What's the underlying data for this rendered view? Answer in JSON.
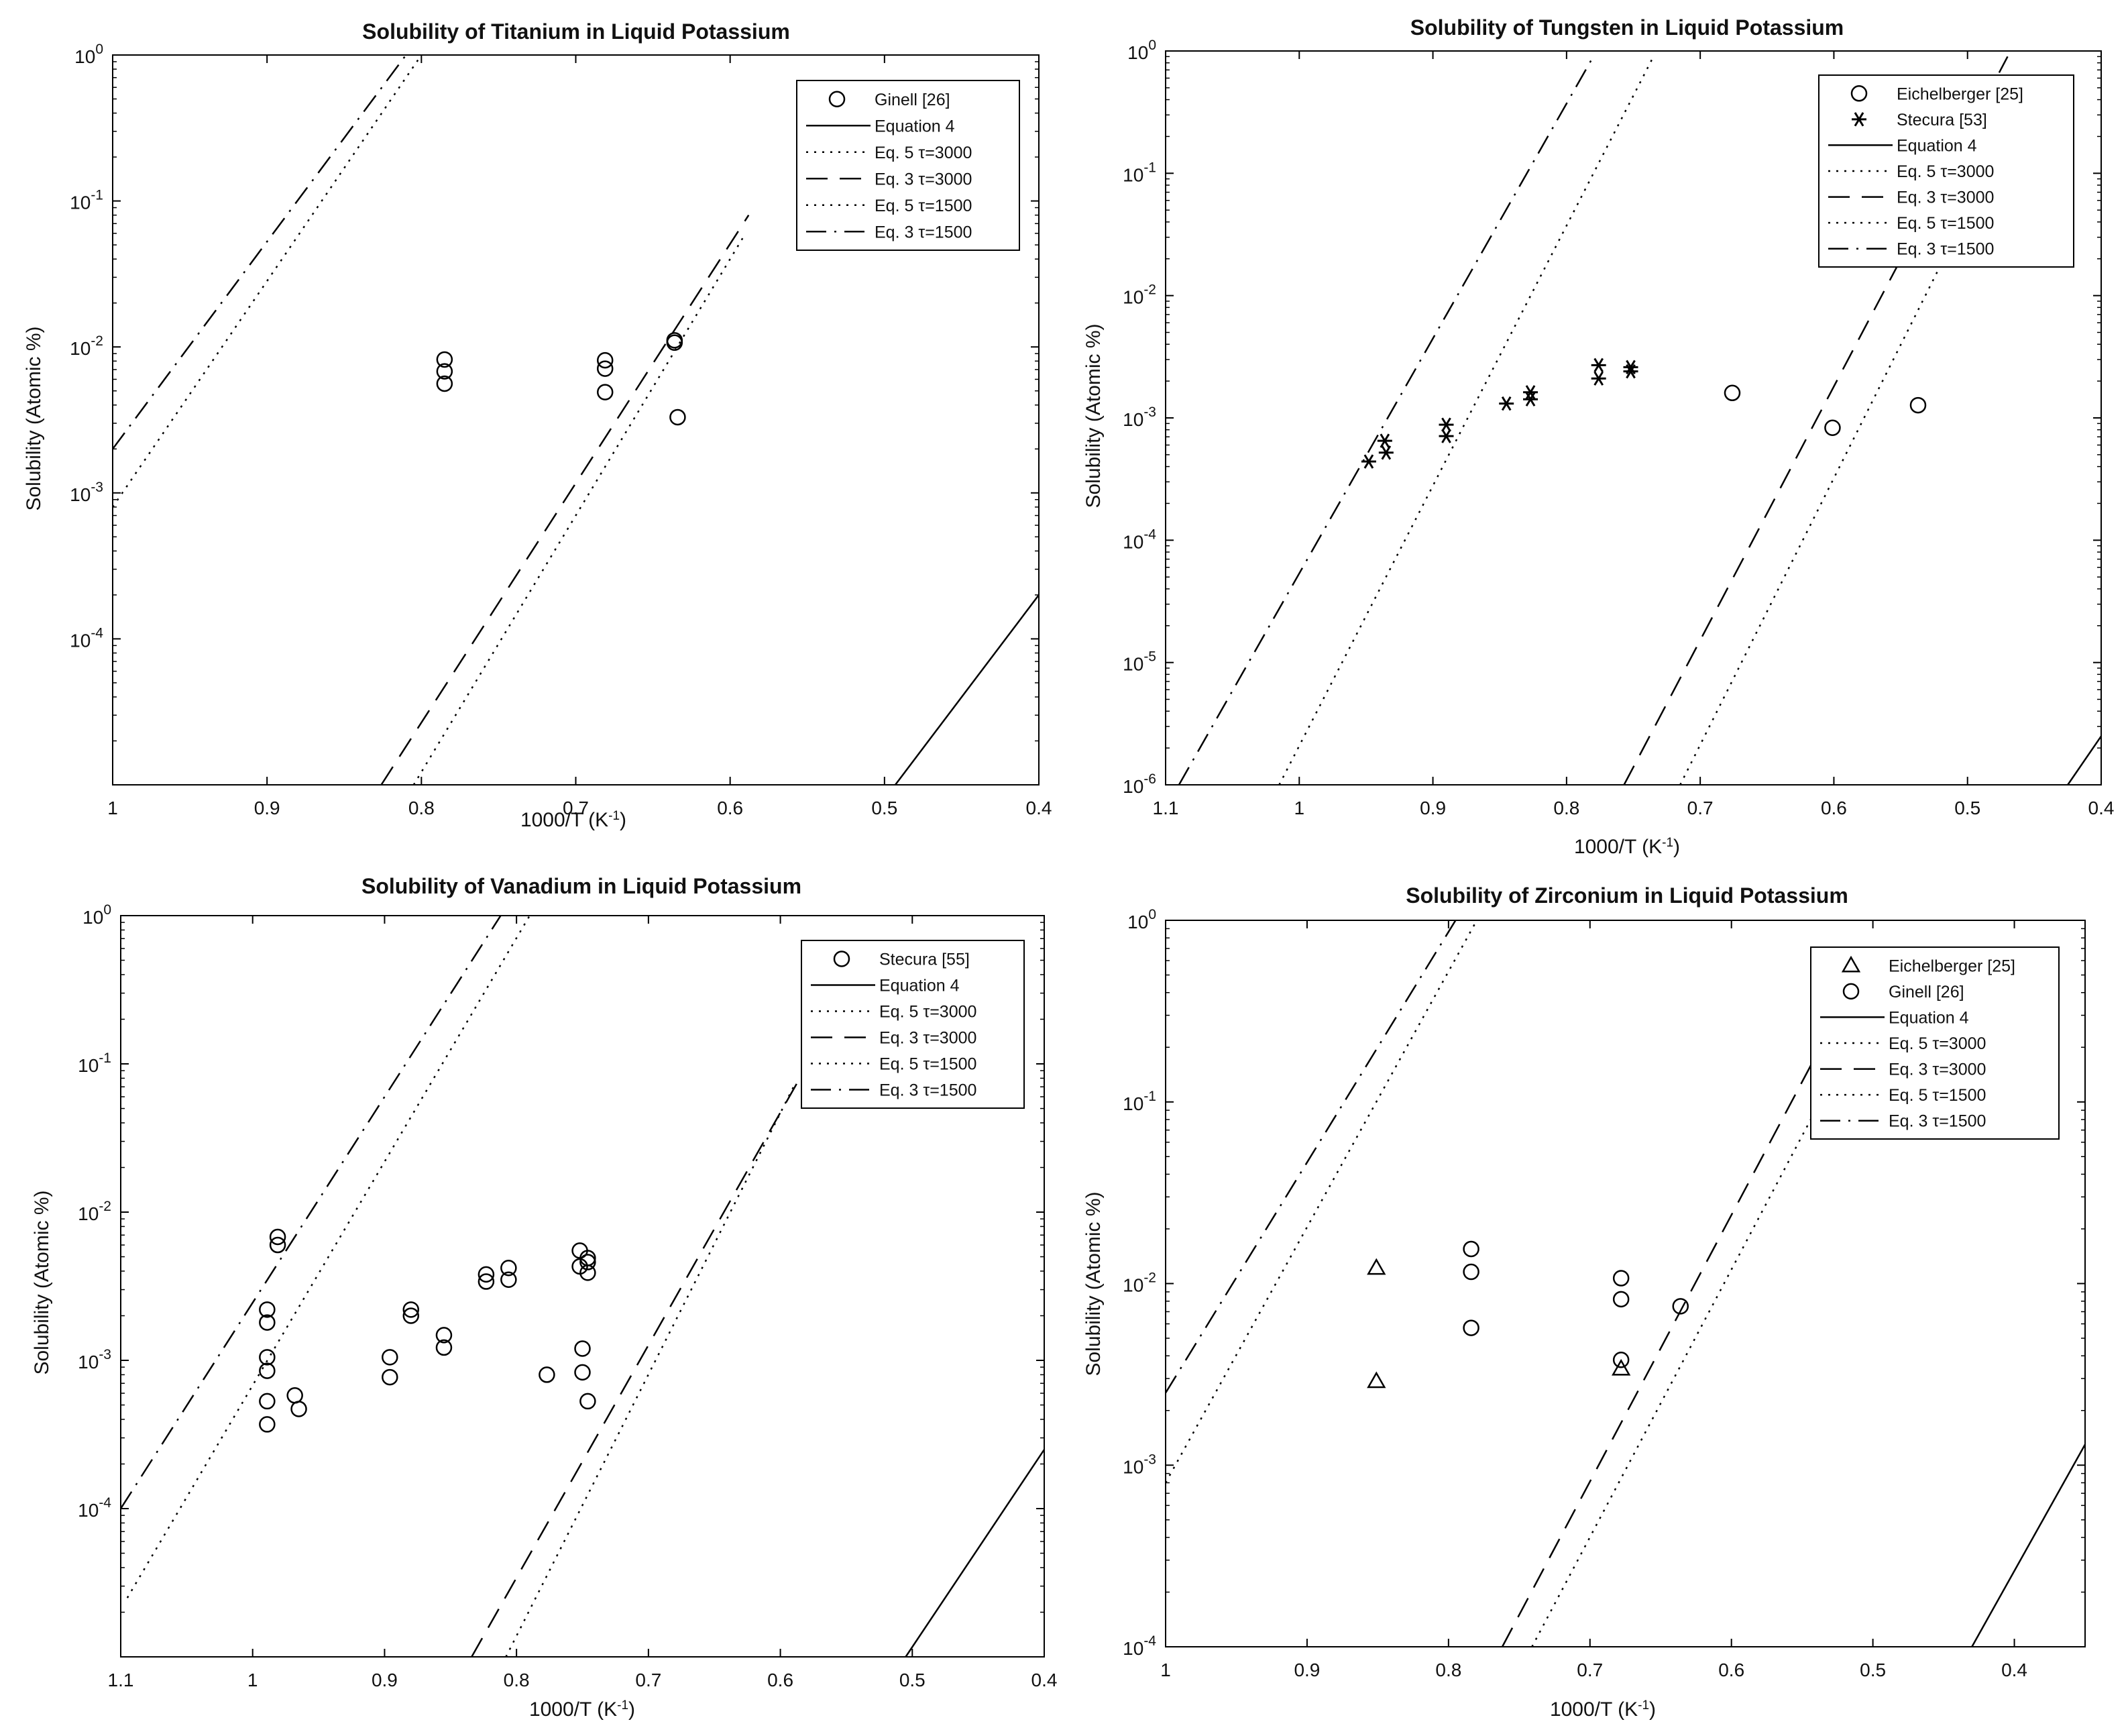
{
  "chart_data": [
    {
      "type": "scatter",
      "title": "Solubility of Titanium in Liquid Potassium",
      "xlabel": "1000/T (K",
      "xlabel_sup": "-1",
      "xlabel_end": ")",
      "ylabel": "Solubility (Atomic %)",
      "xlim": [
        1.0,
        0.4
      ],
      "ylim_log10": [
        -5,
        0
      ],
      "xticks": [
        1,
        0.9,
        0.8,
        0.7,
        0.6,
        0.5,
        0.4
      ],
      "xtick_labels": [
        "1",
        "0.9",
        "0.8",
        "0.7",
        "0.6",
        "0.5",
        "0.4"
      ],
      "ytick_exps": [
        -4,
        -3,
        -2,
        -1,
        0
      ],
      "ytick_labels": [
        {
          "base": "10",
          "exp": "-4"
        },
        {
          "base": "10",
          "exp": "-3"
        },
        {
          "base": "10",
          "exp": "-2"
        },
        {
          "base": "10",
          "exp": "-1"
        },
        {
          "base": "10",
          "exp": "0"
        }
      ],
      "legend_position": "top-right",
      "legend": [
        {
          "label": "Ginell [26]",
          "kind": "marker",
          "marker": "circle"
        },
        {
          "label": "Equation 4",
          "kind": "line",
          "style": "solid"
        },
        {
          "label": "Eq. 5 τ=3000",
          "kind": "line",
          "style": "dotted"
        },
        {
          "label": "Eq. 3 τ=3000",
          "kind": "line",
          "style": "dashed"
        },
        {
          "label": "Eq. 5 τ=1500",
          "kind": "line",
          "style": "dotted"
        },
        {
          "label": "Eq. 3 τ=1500",
          "kind": "line",
          "style": "dashdot"
        }
      ],
      "points": [
        {
          "series": "Ginell [26]",
          "marker": "circle",
          "x": [
            0.785,
            0.785,
            0.785,
            0.681,
            0.681,
            0.681,
            0.636,
            0.636,
            0.634
          ],
          "y": [
            0.0082,
            0.0068,
            0.0056,
            0.0081,
            0.0071,
            0.0049,
            0.0111,
            0.0107,
            0.0033
          ]
        }
      ],
      "lines": [
        {
          "name": "Equation 4",
          "style": "solid",
          "x": [
            0.493,
            0.4
          ],
          "y": [
            1e-05,
            0.0002
          ]
        },
        {
          "name": "Eq. 5 τ=3000",
          "style": "dotted",
          "x": [
            0.805,
            0.59
          ],
          "y": [
            1e-05,
            0.06
          ]
        },
        {
          "name": "Eq. 3 τ=3000",
          "style": "dashed",
          "x": [
            0.826,
            0.588
          ],
          "y": [
            1e-05,
            0.08
          ]
        },
        {
          "name": "Eq. 5 τ=1500",
          "style": "dotted",
          "x": [
            1.0,
            0.8
          ],
          "y": [
            0.0008,
            1.0
          ]
        },
        {
          "name": "Eq. 3 τ=1500",
          "style": "dashdot",
          "x": [
            1.0,
            0.81
          ],
          "y": [
            0.002,
            1.0
          ]
        }
      ]
    },
    {
      "type": "scatter",
      "title": "Solubility of Tungsten in Liquid Potassium",
      "xlabel": "1000/T (K",
      "xlabel_sup": "-1",
      "xlabel_end": ")",
      "ylabel": "Solubility (Atomic %)",
      "xlim": [
        1.1,
        0.4
      ],
      "ylim_log10": [
        -6,
        0
      ],
      "xticks": [
        1.1,
        1,
        0.9,
        0.8,
        0.7,
        0.6,
        0.5,
        0.4
      ],
      "xtick_labels": [
        "1.1",
        "1",
        "0.9",
        "0.8",
        "0.7",
        "0.6",
        "0.5",
        "0.4"
      ],
      "ytick_exps": [
        -6,
        -5,
        -4,
        -3,
        -2,
        -1,
        0
      ],
      "ytick_labels": [
        {
          "base": "10",
          "exp": "-6"
        },
        {
          "base": "10",
          "exp": "-5"
        },
        {
          "base": "10",
          "exp": "-4"
        },
        {
          "base": "10",
          "exp": "-3"
        },
        {
          "base": "10",
          "exp": "-2"
        },
        {
          "base": "10",
          "exp": "-1"
        },
        {
          "base": "10",
          "exp": "0"
        }
      ],
      "legend_position": "top-right",
      "legend": [
        {
          "label": "Eichelberger [25]",
          "kind": "marker",
          "marker": "circle"
        },
        {
          "label": "Stecura [53]",
          "kind": "marker",
          "marker": "asterisk"
        },
        {
          "label": "Equation 4",
          "kind": "line",
          "style": "solid"
        },
        {
          "label": "Eq. 5 τ=3000",
          "kind": "line",
          "style": "dotted"
        },
        {
          "label": "Eq. 3 τ=3000",
          "kind": "line",
          "style": "dashed"
        },
        {
          "label": "Eq. 5 τ=1500",
          "kind": "line",
          "style": "dotted"
        },
        {
          "label": "Eq. 3 τ=1500",
          "kind": "line",
          "style": "dashdot"
        }
      ],
      "points": [
        {
          "series": "Eichelberger [25]",
          "marker": "circle",
          "x": [
            0.676,
            0.601,
            0.537
          ],
          "y": [
            0.0016,
            0.00083,
            0.00127
          ]
        },
        {
          "series": "Stecura [53]",
          "marker": "asterisk",
          "x": [
            0.948,
            0.936,
            0.935,
            0.89,
            0.89,
            0.845,
            0.827,
            0.827,
            0.776,
            0.776,
            0.752,
            0.752
          ],
          "y": [
            0.00044,
            0.00065,
            0.00052,
            0.00088,
            0.00071,
            0.00131,
            0.00162,
            0.00142,
            0.0027,
            0.0021,
            0.0026,
            0.0024
          ]
        }
      ],
      "lines": [
        {
          "name": "Equation 4",
          "style": "solid",
          "x": [
            0.425,
            0.4
          ],
          "y": [
            1e-06,
            2.5e-06
          ]
        },
        {
          "name": "Eq. 5 τ=3000",
          "style": "dotted",
          "x": [
            0.715,
            0.45
          ],
          "y": [
            1e-06,
            0.6
          ]
        },
        {
          "name": "Eq. 3 τ=3000",
          "style": "dashed",
          "x": [
            0.757,
            0.47
          ],
          "y": [
            1e-06,
            0.9
          ]
        },
        {
          "name": "Eq. 5 τ=1500",
          "style": "dotted",
          "x": [
            1.015,
            0.735
          ],
          "y": [
            1e-06,
            0.9
          ]
        },
        {
          "name": "Eq. 3 τ=1500",
          "style": "dashdot",
          "x": [
            1.09,
            0.78
          ],
          "y": [
            1e-06,
            0.9
          ]
        }
      ]
    },
    {
      "type": "scatter",
      "title": "Solubility of Vanadium in Liquid Potassium",
      "xlabel": "1000/T (K",
      "xlabel_sup": "-1",
      "xlabel_end": ")",
      "ylabel": "Solubility (Atomic %)",
      "xlim": [
        1.1,
        0.4
      ],
      "ylim_log10": [
        -5,
        0
      ],
      "xticks": [
        1.1,
        1,
        0.9,
        0.8,
        0.7,
        0.6,
        0.5,
        0.4
      ],
      "xtick_labels": [
        "1.1",
        "1",
        "0.9",
        "0.8",
        "0.7",
        "0.6",
        "0.5",
        "0.4"
      ],
      "ytick_exps": [
        -4,
        -3,
        -2,
        -1,
        0
      ],
      "ytick_labels": [
        {
          "base": "10",
          "exp": "-4"
        },
        {
          "base": "10",
          "exp": "-3"
        },
        {
          "base": "10",
          "exp": "-2"
        },
        {
          "base": "10",
          "exp": "-1"
        },
        {
          "base": "10",
          "exp": "0"
        }
      ],
      "legend_position": "top-right",
      "legend": [
        {
          "label": "Stecura [55]",
          "kind": "marker",
          "marker": "circle"
        },
        {
          "label": "Equation 4",
          "kind": "line",
          "style": "solid"
        },
        {
          "label": "Eq. 5 τ=3000",
          "kind": "line",
          "style": "dotted"
        },
        {
          "label": "Eq. 3 τ=3000",
          "kind": "line",
          "style": "dashed"
        },
        {
          "label": "Eq. 5 τ=1500",
          "kind": "line",
          "style": "dotted"
        },
        {
          "label": "Eq. 3 τ=1500",
          "kind": "line",
          "style": "dashdot"
        }
      ],
      "points": [
        {
          "series": "Stecura [55]",
          "marker": "circle",
          "x": [
            0.981,
            0.981,
            0.989,
            0.989,
            0.989,
            0.989,
            0.989,
            0.989,
            0.968,
            0.965,
            0.896,
            0.896,
            0.88,
            0.88,
            0.855,
            0.855,
            0.823,
            0.823,
            0.806,
            0.806,
            0.777,
            0.752,
            0.752,
            0.746,
            0.746,
            0.746,
            0.75,
            0.75,
            0.746
          ],
          "y": [
            0.0068,
            0.006,
            0.0022,
            0.0018,
            0.00105,
            0.00085,
            0.00053,
            0.00037,
            0.00058,
            0.00047,
            0.00105,
            0.00077,
            0.0022,
            0.002,
            0.00148,
            0.00122,
            0.0038,
            0.0034,
            0.0042,
            0.0035,
            0.0008,
            0.0055,
            0.0043,
            0.0049,
            0.0046,
            0.0039,
            0.0012,
            0.00083,
            0.00053
          ]
        }
      ],
      "lines": [
        {
          "name": "Equation 4",
          "style": "solid",
          "x": [
            0.505,
            0.4
          ],
          "y": [
            1e-05,
            0.00025
          ]
        },
        {
          "name": "Eq. 5 τ=3000",
          "style": "dotted",
          "x": [
            0.808,
            0.59
          ],
          "y": [
            1e-05,
            0.07
          ]
        },
        {
          "name": "Eq. 3 τ=3000",
          "style": "dashed",
          "x": [
            0.834,
            0.582
          ],
          "y": [
            1e-05,
            0.09
          ]
        },
        {
          "name": "Eq. 5 τ=1500",
          "style": "dotted",
          "x": [
            1.095,
            0.79
          ],
          "y": [
            2.5e-05,
            1.0
          ]
        },
        {
          "name": "Eq. 3 τ=1500",
          "style": "dashdot",
          "x": [
            1.1,
            0.812
          ],
          "y": [
            0.0001,
            1.0
          ]
        }
      ]
    },
    {
      "type": "scatter",
      "title": "Solubility of Zirconium in Liquid Potassium",
      "xlabel": "1000/T (K",
      "xlabel_sup": "-1",
      "xlabel_end": ")",
      "ylabel": "Solubility (Atomic %)",
      "xlim": [
        1.0,
        0.35
      ],
      "ylim_log10": [
        -4,
        0
      ],
      "xticks": [
        1,
        0.9,
        0.8,
        0.7,
        0.6,
        0.5,
        0.4
      ],
      "xtick_labels": [
        "1",
        "0.9",
        "0.8",
        "0.7",
        "0.6",
        "0.5",
        "0.4"
      ],
      "ytick_exps": [
        -4,
        -3,
        -2,
        -1,
        0
      ],
      "ytick_labels": [
        {
          "base": "10",
          "exp": "-4"
        },
        {
          "base": "10",
          "exp": "-3"
        },
        {
          "base": "10",
          "exp": "-2"
        },
        {
          "base": "10",
          "exp": "-1"
        },
        {
          "base": "10",
          "exp": "0"
        }
      ],
      "legend_position": "top-right",
      "legend": [
        {
          "label": "Eichelberger [25]",
          "kind": "marker",
          "marker": "triangle"
        },
        {
          "label": "Ginell [26]",
          "kind": "marker",
          "marker": "circle"
        },
        {
          "label": "Equation 4",
          "kind": "line",
          "style": "solid"
        },
        {
          "label": "Eq. 5 τ=3000",
          "kind": "line",
          "style": "dotted"
        },
        {
          "label": "Eq. 3 τ=3000",
          "kind": "line",
          "style": "dashed"
        },
        {
          "label": "Eq. 5 τ=1500",
          "kind": "line",
          "style": "dotted"
        },
        {
          "label": "Eq. 3 τ=1500",
          "kind": "line",
          "style": "dashdot"
        }
      ],
      "points": [
        {
          "series": "Eichelberger [25]",
          "marker": "triangle",
          "x": [
            0.851,
            0.851,
            0.678
          ],
          "y": [
            0.0122,
            0.0029,
            0.0034
          ]
        },
        {
          "series": "Ginell [26]",
          "marker": "circle",
          "x": [
            0.784,
            0.784,
            0.784,
            0.678,
            0.678,
            0.678,
            0.636
          ],
          "y": [
            0.0155,
            0.0116,
            0.0057,
            0.0107,
            0.0082,
            0.0038,
            0.0075
          ]
        }
      ],
      "lines": [
        {
          "name": "Equation 4",
          "style": "solid",
          "x": [
            0.43,
            0.35
          ],
          "y": [
            0.0001,
            0.0013
          ]
        },
        {
          "name": "Eq. 5 τ=3000",
          "style": "dotted",
          "x": [
            0.741,
            0.48
          ],
          "y": [
            0.0001,
            0.7
          ]
        },
        {
          "name": "Eq. 3 τ=3000",
          "style": "dashed",
          "x": [
            0.762,
            0.5
          ],
          "y": [
            0.0001,
            0.7
          ]
        },
        {
          "name": "Eq. 5 τ=1500",
          "style": "dotted",
          "x": [
            1.0,
            0.78
          ],
          "y": [
            0.0008,
            1.0
          ]
        },
        {
          "name": "Eq. 3 τ=1500",
          "style": "dashdot",
          "x": [
            1.0,
            0.795
          ],
          "y": [
            0.0025,
            1.0
          ]
        }
      ]
    }
  ]
}
